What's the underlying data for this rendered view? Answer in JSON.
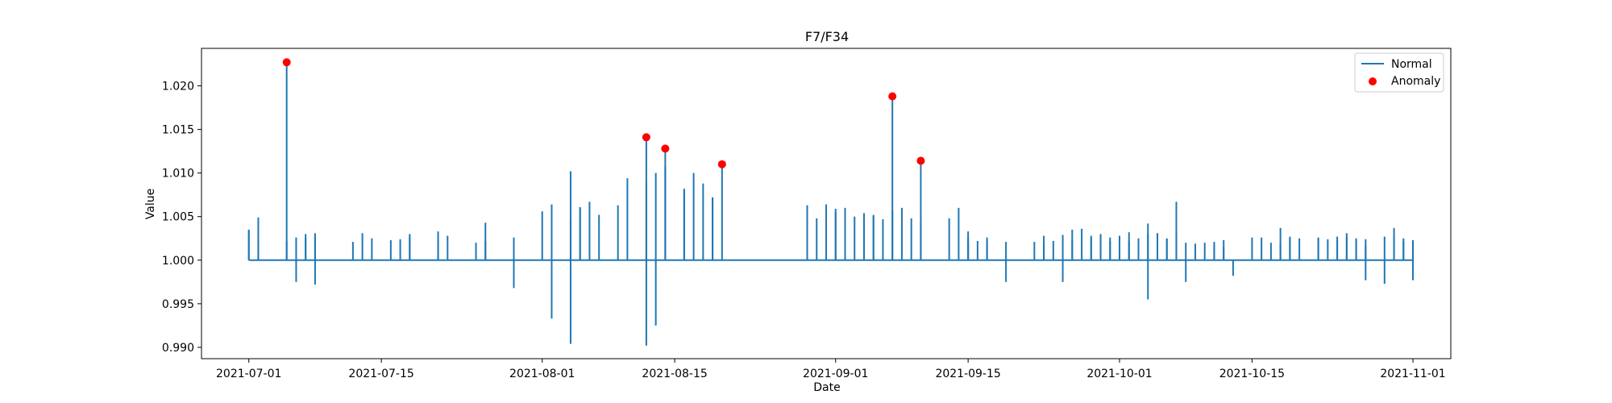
{
  "chart_data": {
    "type": "line",
    "title": "F7/F34",
    "xlabel": "Date",
    "ylabel": "Value",
    "x_type": "date",
    "xlim": [
      "2021-06-26",
      "2021-11-05"
    ],
    "ylim": [
      0.9887,
      1.0243
    ],
    "x_ticks": [
      "2021-07-01",
      "2021-07-15",
      "2021-08-01",
      "2021-08-15",
      "2021-09-01",
      "2021-09-15",
      "2021-10-01",
      "2021-10-15",
      "2021-11-01"
    ],
    "y_ticks": [
      0.99,
      0.995,
      1.0,
      1.005,
      1.01,
      1.015,
      1.02
    ],
    "y_tick_labels": [
      "0.990",
      "0.995",
      "1.000",
      "1.005",
      "1.010",
      "1.015",
      "1.020"
    ],
    "baseline": 1.0,
    "grid": false,
    "legend": {
      "position": "top-right",
      "entries": [
        "Normal",
        "Anomaly"
      ]
    },
    "colors": {
      "normal": "#1f77b4",
      "anomaly": "#ff0000"
    },
    "series": [
      {
        "name": "Normal",
        "points": [
          [
            "2021-07-01",
            1.0035
          ],
          [
            "2021-07-01",
            1.0034
          ],
          [
            "2021-07-02",
            1.0049
          ],
          [
            "2021-07-02",
            1.0025
          ],
          [
            "2021-07-05",
            1.0227
          ],
          [
            "2021-07-05",
            1.0022
          ],
          [
            "2021-07-06",
            1.0026
          ],
          [
            "2021-07-06",
            0.9975
          ],
          [
            "2021-07-07",
            1.003
          ],
          [
            "2021-07-07",
            1.0025
          ],
          [
            "2021-07-08",
            1.0028
          ],
          [
            "2021-07-08",
            0.9972
          ],
          [
            "2021-07-08",
            1.0031
          ],
          [
            "2021-07-12",
            1.0021
          ],
          [
            "2021-07-13",
            1.0031
          ],
          [
            "2021-07-14",
            1.0025
          ],
          [
            "2021-07-16",
            1.0023
          ],
          [
            "2021-07-17",
            1.0024
          ],
          [
            "2021-07-18",
            1.003
          ],
          [
            "2021-07-18",
            1.0027
          ],
          [
            "2021-07-21",
            1.0022
          ],
          [
            "2021-07-21",
            1.0033
          ],
          [
            "2021-07-22",
            1.0028
          ],
          [
            "2021-07-25",
            1.002
          ],
          [
            "2021-07-26",
            1.0043
          ],
          [
            "2021-07-26",
            1.0022
          ],
          [
            "2021-07-29",
            1.0026
          ],
          [
            "2021-07-29",
            0.9968
          ],
          [
            "2021-08-01",
            1.0056
          ],
          [
            "2021-08-02",
            1.0064
          ],
          [
            "2021-08-02",
            0.9933
          ],
          [
            "2021-08-04",
            1.0102
          ],
          [
            "2021-08-04",
            0.9904
          ],
          [
            "2021-08-04",
            1.0046
          ],
          [
            "2021-08-05",
            1.0059
          ],
          [
            "2021-08-05",
            1.0061
          ],
          [
            "2021-08-06",
            1.0067
          ],
          [
            "2021-08-07",
            1.0052
          ],
          [
            "2021-08-09",
            1.0063
          ],
          [
            "2021-08-10",
            1.0094
          ],
          [
            "2021-08-12",
            1.0141
          ],
          [
            "2021-08-12",
            0.9902
          ],
          [
            "2021-08-12",
            1.0089
          ],
          [
            "2021-08-13",
            1.01
          ],
          [
            "2021-08-13",
            0.9925
          ],
          [
            "2021-08-14",
            1.0107
          ],
          [
            "2021-08-14",
            1.0128
          ],
          [
            "2021-08-16",
            1.0082
          ],
          [
            "2021-08-16",
            1.008
          ],
          [
            "2021-08-17",
            1.01
          ],
          [
            "2021-08-18",
            1.0088
          ],
          [
            "2021-08-19",
            1.0071
          ],
          [
            "2021-08-19",
            1.0072
          ],
          [
            "2021-08-20",
            1.011
          ],
          [
            "2021-08-29",
            1.0063
          ],
          [
            "2021-08-30",
            1.0048
          ],
          [
            "2021-08-31",
            1.0064
          ],
          [
            "2021-08-31",
            1.0046
          ],
          [
            "2021-09-01",
            1.0055
          ],
          [
            "2021-09-01",
            1.0059
          ],
          [
            "2021-09-02",
            1.006
          ],
          [
            "2021-09-03",
            1.005
          ],
          [
            "2021-09-04",
            1.0043
          ],
          [
            "2021-09-04",
            1.0054
          ],
          [
            "2021-09-05",
            1.0052
          ],
          [
            "2021-09-05",
            1.005
          ],
          [
            "2021-09-06",
            1.0047
          ],
          [
            "2021-09-07",
            1.0188
          ],
          [
            "2021-09-07",
            1.0057
          ],
          [
            "2021-09-08",
            1.006
          ],
          [
            "2021-09-09",
            1.0048
          ],
          [
            "2021-09-10",
            1.0043
          ],
          [
            "2021-09-10",
            1.0114
          ],
          [
            "2021-09-13",
            1.0048
          ],
          [
            "2021-09-14",
            1.006
          ],
          [
            "2021-09-15",
            1.002
          ],
          [
            "2021-09-15",
            1.0026
          ],
          [
            "2021-09-15",
            1.0033
          ],
          [
            "2021-09-16",
            1.0022
          ],
          [
            "2021-09-17",
            1.0026
          ],
          [
            "2021-09-17",
            1.0022
          ],
          [
            "2021-09-19",
            1.0021
          ],
          [
            "2021-09-19",
            0.9975
          ],
          [
            "2021-09-22",
            1.0021
          ],
          [
            "2021-09-23",
            1.0028
          ],
          [
            "2021-09-23",
            1.0018
          ],
          [
            "2021-09-24",
            1.0022
          ],
          [
            "2021-09-25",
            1.0029
          ],
          [
            "2021-09-25",
            0.9975
          ],
          [
            "2021-09-26",
            1.0023
          ],
          [
            "2021-09-26",
            1.0035
          ],
          [
            "2021-09-27",
            1.0036
          ],
          [
            "2021-09-28",
            1.0028
          ],
          [
            "2021-09-28",
            1.0025
          ],
          [
            "2021-09-29",
            1.003
          ],
          [
            "2021-09-29",
            1.0026
          ],
          [
            "2021-09-30",
            1.0022
          ],
          [
            "2021-09-30",
            1.0026
          ],
          [
            "2021-10-01",
            1.0024
          ],
          [
            "2021-10-01",
            1.0028
          ],
          [
            "2021-10-02",
            1.0022
          ],
          [
            "2021-10-02",
            1.0032
          ],
          [
            "2021-10-03",
            1.0025
          ],
          [
            "2021-10-04",
            1.0042
          ],
          [
            "2021-10-04",
            0.9955
          ],
          [
            "2021-10-04",
            1.003
          ],
          [
            "2021-10-05",
            1.0031
          ],
          [
            "2021-10-06",
            1.0025
          ],
          [
            "2021-10-06",
            1.0024
          ],
          [
            "2021-10-07",
            1.0032
          ],
          [
            "2021-10-07",
            1.0067
          ],
          [
            "2021-10-08",
            1.002
          ],
          [
            "2021-10-08",
            0.9975
          ],
          [
            "2021-10-09",
            1.0019
          ],
          [
            "2021-10-10",
            1.002
          ],
          [
            "2021-10-11",
            1.0021
          ],
          [
            "2021-10-11",
            1.0018
          ],
          [
            "2021-10-12",
            1.0023
          ],
          [
            "2021-10-12",
            1.0015
          ],
          [
            "2021-10-13",
            0.9982
          ],
          [
            "2021-10-15",
            1.0026
          ],
          [
            "2021-10-16",
            1.0026
          ],
          [
            "2021-10-17",
            1.002
          ],
          [
            "2021-10-18",
            1.002
          ],
          [
            "2021-10-18",
            1.0037
          ],
          [
            "2021-10-19",
            1.0027
          ],
          [
            "2021-10-19",
            1.0025
          ],
          [
            "2021-10-20",
            1.0025
          ],
          [
            "2021-10-22",
            1.0026
          ],
          [
            "2021-10-22",
            1.0025
          ],
          [
            "2021-10-23",
            1.0024
          ],
          [
            "2021-10-24",
            1.0023
          ],
          [
            "2021-10-24",
            1.0027
          ],
          [
            "2021-10-25",
            1.0031
          ],
          [
            "2021-10-25",
            1.0026
          ],
          [
            "2021-10-26",
            1.0025
          ],
          [
            "2021-10-26",
            1.0022
          ],
          [
            "2021-10-27",
            1.0024
          ],
          [
            "2021-10-27",
            1.0017
          ],
          [
            "2021-10-27",
            0.9977
          ],
          [
            "2021-10-29",
            1.0027
          ],
          [
            "2021-10-29",
            0.9973
          ],
          [
            "2021-10-30",
            1.0026
          ],
          [
            "2021-10-30",
            1.0037
          ],
          [
            "2021-10-31",
            1.0022
          ],
          [
            "2021-10-31",
            1.0025
          ],
          [
            "2021-11-01",
            0.9977
          ],
          [
            "2021-11-01",
            1.0023
          ],
          [
            "2021-11-01",
            1.0022
          ],
          [
            "2021-11-01",
            1.0021
          ]
        ]
      },
      {
        "name": "Anomaly",
        "type": "scatter",
        "points": [
          [
            "2021-07-05",
            1.0227
          ],
          [
            "2021-08-12",
            1.0141
          ],
          [
            "2021-08-14",
            1.0128
          ],
          [
            "2021-08-20",
            1.011
          ],
          [
            "2021-09-07",
            1.0188
          ],
          [
            "2021-09-10",
            1.0114
          ]
        ]
      }
    ]
  }
}
